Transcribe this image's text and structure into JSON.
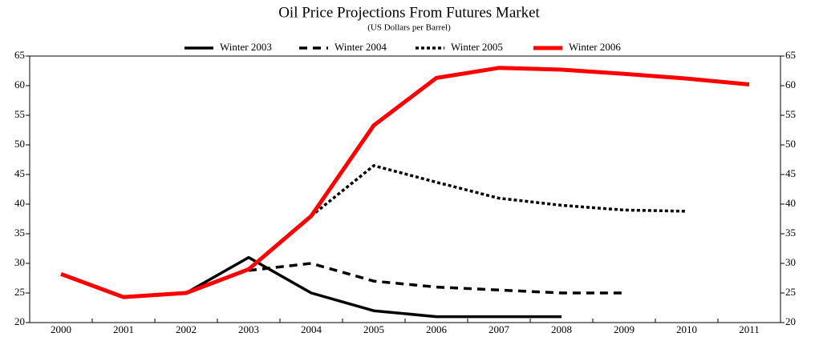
{
  "chart_data": {
    "type": "line",
    "title": "Oil Price Projections From Futures Market",
    "subtitle": "(US Dollars per Barrel)",
    "categories": [
      "2000",
      "2001",
      "2002",
      "2003",
      "2004",
      "2005",
      "2006",
      "2007",
      "2008",
      "2009",
      "2010",
      "2011"
    ],
    "series": [
      {
        "name": "Winter 2003",
        "color": "#000000",
        "dash": "solid",
        "values": [
          null,
          null,
          25,
          31,
          25,
          22,
          21,
          21,
          21,
          null,
          null,
          null
        ]
      },
      {
        "name": "Winter 2004",
        "color": "#000000",
        "dash": "dashed",
        "values": [
          null,
          null,
          null,
          28.8,
          30,
          27,
          26,
          25.5,
          25,
          25,
          null,
          null
        ]
      },
      {
        "name": "Winter 2005",
        "color": "#000000",
        "dash": "dotted",
        "values": [
          null,
          null,
          null,
          null,
          38,
          46.5,
          43.7,
          41,
          39.8,
          39,
          38.8,
          null
        ]
      },
      {
        "name": "Winter 2006",
        "color": "#ff0000",
        "dash": "solid",
        "values": [
          28.2,
          24.3,
          25,
          29,
          38,
          53.3,
          61.3,
          63,
          62.7,
          62,
          61.2,
          60.2
        ]
      }
    ],
    "ylim": [
      20,
      65
    ],
    "yticks": [
      20,
      25,
      30,
      35,
      40,
      45,
      50,
      55,
      60,
      65
    ],
    "y2lim": [
      20,
      65
    ],
    "y2ticks": [
      20,
      25,
      30,
      35,
      40,
      45,
      50,
      55,
      60,
      65
    ],
    "grid": false,
    "legend": "top"
  }
}
